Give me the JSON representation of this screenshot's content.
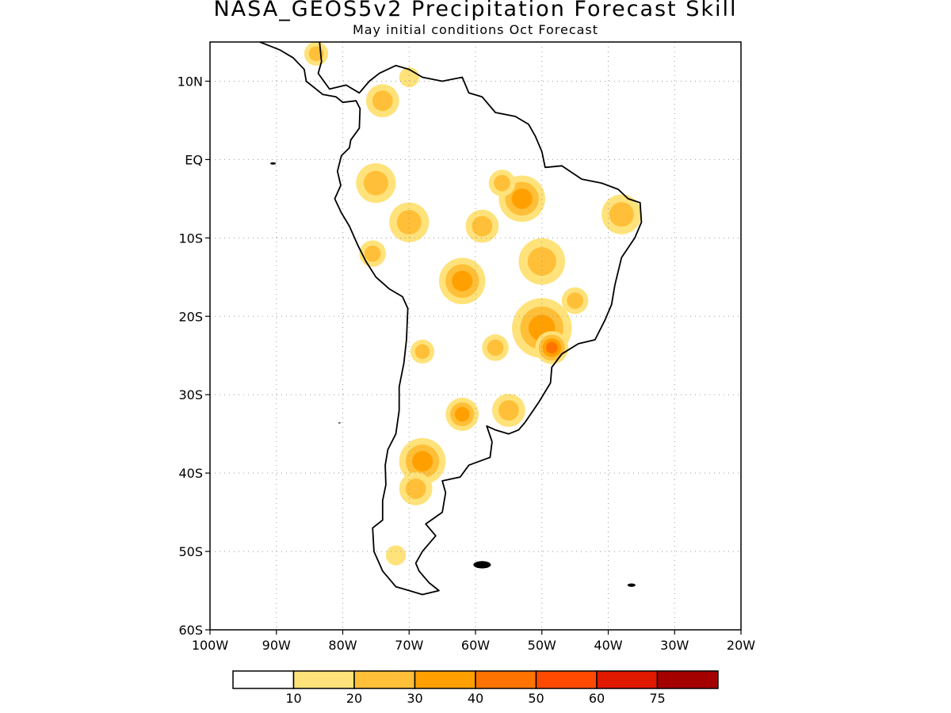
{
  "title": "NASA_GEOS5v2 Precipitation Forecast Skill",
  "subtitle": "May initial conditions  Oct Forecast",
  "map": {
    "lon_range": [
      -100,
      -20
    ],
    "lat_range": [
      -60,
      15
    ],
    "grid": true,
    "lat_ticks": [
      {
        "lat": 10,
        "label": "10N"
      },
      {
        "lat": 0,
        "label": "EQ"
      },
      {
        "lat": -10,
        "label": "10S"
      },
      {
        "lat": -20,
        "label": "20S"
      },
      {
        "lat": -30,
        "label": "30S"
      },
      {
        "lat": -40,
        "label": "40S"
      },
      {
        "lat": -50,
        "label": "50S"
      },
      {
        "lat": -60,
        "label": "60S"
      }
    ],
    "lon_ticks": [
      {
        "lon": -100,
        "label": "100W"
      },
      {
        "lon": -90,
        "label": "90W"
      },
      {
        "lon": -80,
        "label": "80W"
      },
      {
        "lon": -70,
        "label": "70W"
      },
      {
        "lon": -60,
        "label": "60W"
      },
      {
        "lon": -50,
        "label": "50W"
      },
      {
        "lon": -40,
        "label": "40W"
      },
      {
        "lon": -30,
        "label": "30W"
      },
      {
        "lon": -20,
        "label": "20W"
      }
    ]
  },
  "colorbar": {
    "colors": [
      "#ffffff",
      "#ffe27a",
      "#ffbf38",
      "#ffa000",
      "#ff7400",
      "#ff4a00",
      "#e01800",
      "#a50000"
    ],
    "labels": [
      "10",
      "20",
      "30",
      "40",
      "50",
      "60",
      "75"
    ]
  },
  "skill_regions": [
    {
      "lon": -62,
      "lat": -15.5,
      "r": 3.5,
      "level": 3
    },
    {
      "lon": -50,
      "lat": -21.5,
      "r": 4.5,
      "level": 3
    },
    {
      "lon": -48.5,
      "lat": -24,
      "r": 2.5,
      "level": 4
    },
    {
      "lon": -53,
      "lat": -5,
      "r": 3.5,
      "level": 3
    },
    {
      "lon": -50,
      "lat": -13,
      "r": 3.5,
      "level": 2
    },
    {
      "lon": -38,
      "lat": -7,
      "r": 3,
      "level": 2
    },
    {
      "lon": -68,
      "lat": -38.5,
      "r": 3.5,
      "level": 3
    },
    {
      "lon": -69,
      "lat": -42,
      "r": 2.5,
      "level": 2
    },
    {
      "lon": -62,
      "lat": -32.5,
      "r": 2.5,
      "level": 3
    },
    {
      "lon": -55,
      "lat": -32,
      "r": 2.5,
      "level": 2
    },
    {
      "lon": -70,
      "lat": -8,
      "r": 3,
      "level": 2
    },
    {
      "lon": -75,
      "lat": -3,
      "r": 3,
      "level": 2
    },
    {
      "lon": -74,
      "lat": 7.5,
      "r": 2.5,
      "level": 2
    },
    {
      "lon": -70,
      "lat": 10.5,
      "r": 1.5,
      "level": 1
    },
    {
      "lon": -84,
      "lat": 13.5,
      "r": 1.8,
      "level": 2
    },
    {
      "lon": -72,
      "lat": -50.5,
      "r": 1.5,
      "level": 1
    },
    {
      "lon": -68,
      "lat": -24.5,
      "r": 1.8,
      "level": 2
    },
    {
      "lon": -59,
      "lat": -8.5,
      "r": 2.5,
      "level": 2
    },
    {
      "lon": -57,
      "lat": -24,
      "r": 2,
      "level": 2
    },
    {
      "lon": -56,
      "lat": -3,
      "r": 2,
      "level": 2
    },
    {
      "lon": -75.5,
      "lat": -12,
      "r": 2,
      "level": 2
    },
    {
      "lon": -45,
      "lat": -18,
      "r": 2,
      "level": 2
    }
  ]
}
